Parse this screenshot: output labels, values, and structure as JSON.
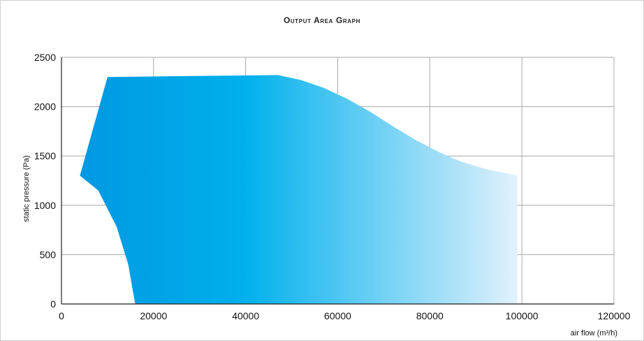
{
  "chart_data": {
    "type": "area",
    "title": "Output Area Graph",
    "xlabel": "air flow (m³/h)",
    "ylabel": "static pressure (Pa)",
    "xlim": [
      0,
      120000
    ],
    "ylim": [
      0,
      2500
    ],
    "x_ticks": [
      "0",
      "20000",
      "40000",
      "60000",
      "80000",
      "100000",
      "120000"
    ],
    "y_ticks": [
      "0",
      "500",
      "1000",
      "1500",
      "2000",
      "2500"
    ],
    "grid": true,
    "fill_gradient": [
      "#0096e0",
      "#00b0ec",
      "#e2f1fc"
    ],
    "boundary": [
      {
        "x": 4000,
        "y": 1300
      },
      {
        "x": 10000,
        "y": 2300
      },
      {
        "x": 47000,
        "y": 2320
      },
      {
        "x": 52000,
        "y": 2270
      },
      {
        "x": 57000,
        "y": 2190
      },
      {
        "x": 62000,
        "y": 2080
      },
      {
        "x": 67000,
        "y": 1950
      },
      {
        "x": 72000,
        "y": 1800
      },
      {
        "x": 77000,
        "y": 1660
      },
      {
        "x": 82000,
        "y": 1540
      },
      {
        "x": 87000,
        "y": 1440
      },
      {
        "x": 92000,
        "y": 1370
      },
      {
        "x": 99000,
        "y": 1300
      },
      {
        "x": 99000,
        "y": 0
      },
      {
        "x": 16000,
        "y": 0
      },
      {
        "x": 14500,
        "y": 400
      },
      {
        "x": 12000,
        "y": 780
      },
      {
        "x": 8000,
        "y": 1150
      },
      {
        "x": 4000,
        "y": 1300
      }
    ]
  }
}
